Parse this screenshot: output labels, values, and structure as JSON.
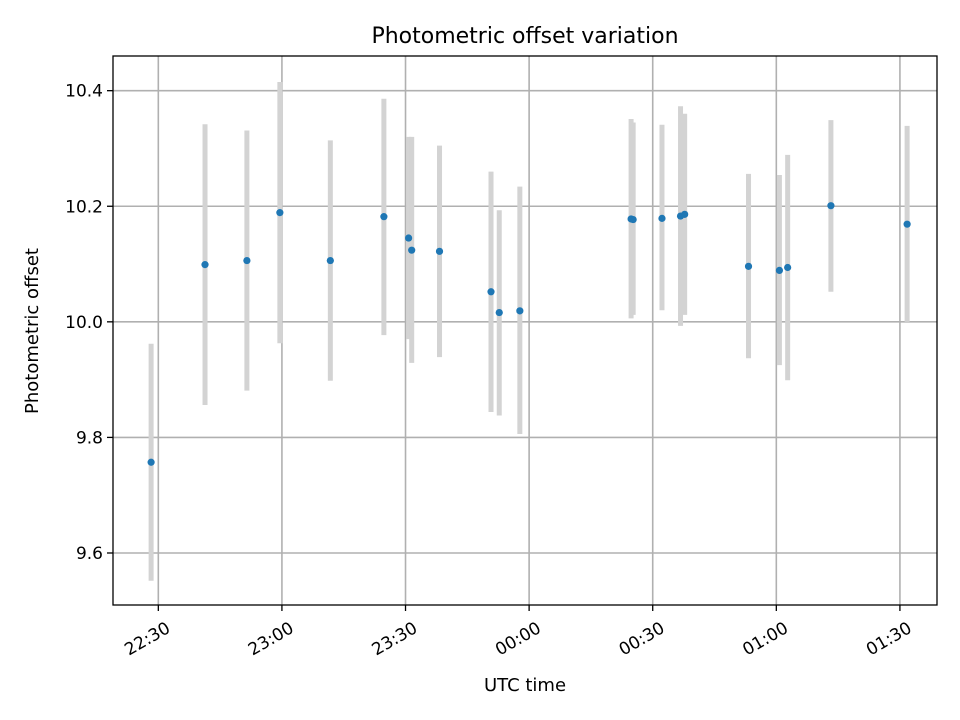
{
  "chart_data": {
    "type": "scatter",
    "title": "Photometric offset variation",
    "xlabel": "UTC time",
    "ylabel": "Photometric offset",
    "x_axis": "time",
    "xlim": [
      "22:19",
      "01:39"
    ],
    "ylim": [
      9.51,
      10.46
    ],
    "xticks": [
      "22:30",
      "23:00",
      "23:30",
      "00:00",
      "00:30",
      "01:00",
      "01:30"
    ],
    "yticks": [
      "9.6",
      "9.8",
      "10.0",
      "10.2",
      "10.4"
    ],
    "grid": true,
    "legend": "none",
    "colors": {
      "point": "#1f77b4",
      "error_bar": "#d3d3d3",
      "grid": "#b0b0b0"
    },
    "points": [
      {
        "t": "22:28:15",
        "y": 9.757,
        "ylo": 9.552,
        "yhi": 9.962
      },
      {
        "t": "22:41:20",
        "y": 10.099,
        "ylo": 9.856,
        "yhi": 10.342
      },
      {
        "t": "22:51:30",
        "y": 10.106,
        "ylo": 9.881,
        "yhi": 10.331
      },
      {
        "t": "22:59:30",
        "y": 10.189,
        "ylo": 9.963,
        "yhi": 10.415
      },
      {
        "t": "23:11:45",
        "y": 10.106,
        "ylo": 9.898,
        "yhi": 10.314
      },
      {
        "t": "23:24:45",
        "y": 10.182,
        "ylo": 9.977,
        "yhi": 10.386
      },
      {
        "t": "23:30:45",
        "y": 10.145,
        "ylo": 9.97,
        "yhi": 10.32
      },
      {
        "t": "23:31:30",
        "y": 10.124,
        "ylo": 9.929,
        "yhi": 10.32
      },
      {
        "t": "23:38:15",
        "y": 10.122,
        "ylo": 9.939,
        "yhi": 10.305
      },
      {
        "t": "23:50:45",
        "y": 10.052,
        "ylo": 9.844,
        "yhi": 10.26
      },
      {
        "t": "23:52:45",
        "y": 10.016,
        "ylo": 9.838,
        "yhi": 10.193
      },
      {
        "t": "23:57:45",
        "y": 10.019,
        "ylo": 9.806,
        "yhi": 10.234
      },
      {
        "t": "00:24:45",
        "y": 10.178,
        "ylo": 10.006,
        "yhi": 10.351
      },
      {
        "t": "00:25:15",
        "y": 10.177,
        "ylo": 10.012,
        "yhi": 10.345
      },
      {
        "t": "00:32:15",
        "y": 10.179,
        "ylo": 10.02,
        "yhi": 10.341
      },
      {
        "t": "00:36:45",
        "y": 10.183,
        "ylo": 9.993,
        "yhi": 10.373
      },
      {
        "t": "00:37:45",
        "y": 10.186,
        "ylo": 10.012,
        "yhi": 10.36
      },
      {
        "t": "00:53:15",
        "y": 10.096,
        "ylo": 9.937,
        "yhi": 10.256
      },
      {
        "t": "01:00:45",
        "y": 10.089,
        "ylo": 9.925,
        "yhi": 10.254
      },
      {
        "t": "01:02:45",
        "y": 10.094,
        "ylo": 9.899,
        "yhi": 10.289
      },
      {
        "t": "01:13:15",
        "y": 10.201,
        "ylo": 10.052,
        "yhi": 10.349
      },
      {
        "t": "01:31:45",
        "y": 10.169,
        "ylo": 10.0,
        "yhi": 10.339
      }
    ]
  }
}
